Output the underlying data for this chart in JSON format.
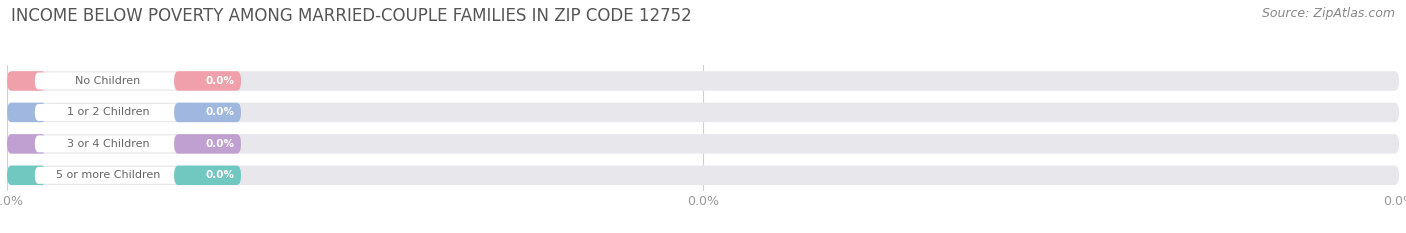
{
  "title": "INCOME BELOW POVERTY AMONG MARRIED-COUPLE FAMILIES IN ZIP CODE 12752",
  "source": "Source: ZipAtlas.com",
  "categories": [
    "No Children",
    "1 or 2 Children",
    "3 or 4 Children",
    "5 or more Children"
  ],
  "values": [
    0.0,
    0.0,
    0.0,
    0.0
  ],
  "bar_colors": [
    "#f0a0aa",
    "#a0b8e0",
    "#c0a0d0",
    "#70c8c0"
  ],
  "background_color": "#ffffff",
  "bar_bg_color": "#e8e8ec",
  "title_fontsize": 12,
  "source_fontsize": 9,
  "tick_fontsize": 9,
  "label_text_color": "#666666",
  "value_text_color": "#ffffff"
}
